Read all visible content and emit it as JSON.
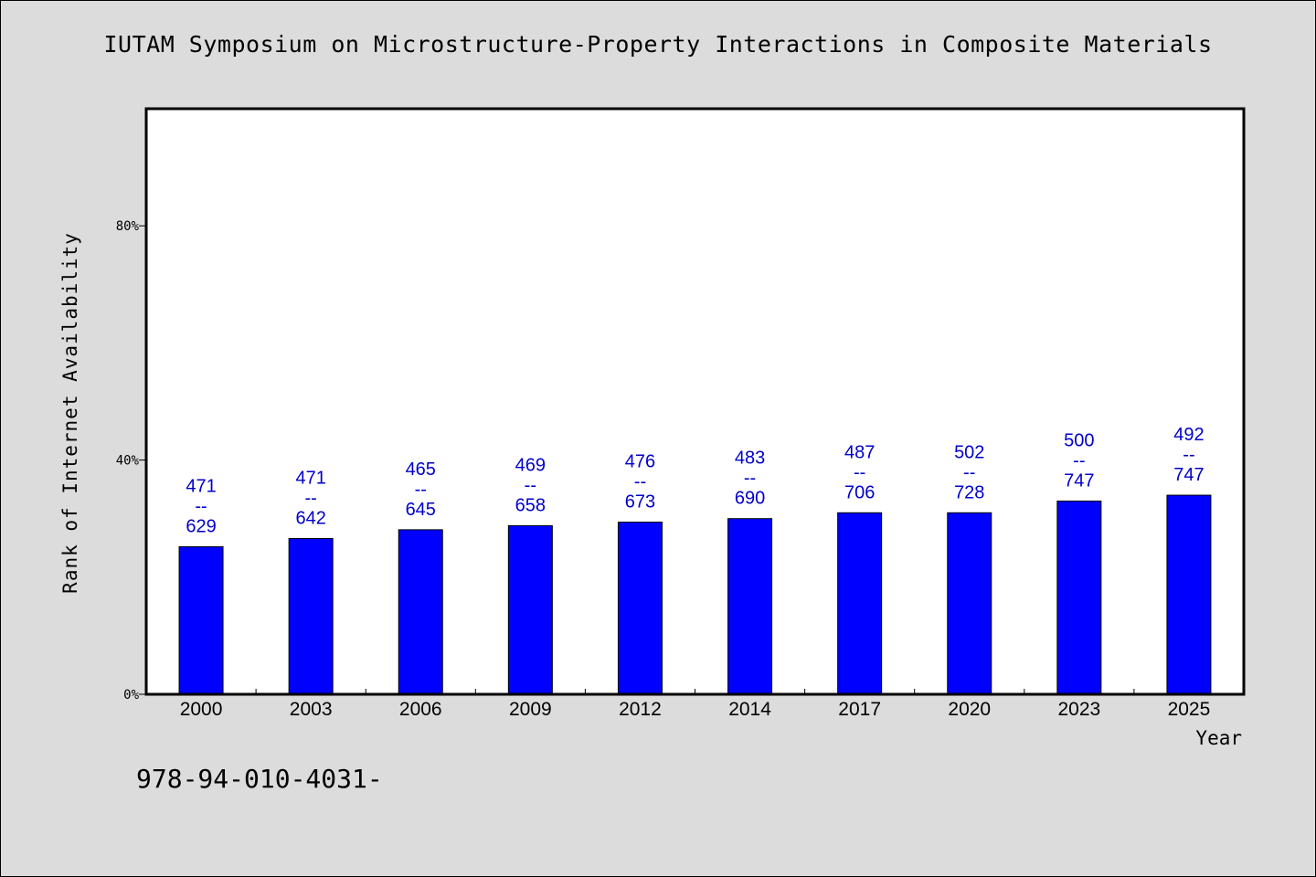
{
  "title": "IUTAM Symposium on Microstructure-Property Interactions in Composite Materials",
  "footnote": "978-94-010-4031-",
  "chart_data": {
    "type": "bar",
    "title": "IUTAM Symposium on Microstructure-Property Interactions in Composite Materials",
    "xlabel": "Year",
    "ylabel": "Rank of Internet Availability",
    "categories": [
      "2000",
      "2003",
      "2006",
      "2009",
      "2012",
      "2014",
      "2017",
      "2020",
      "2023",
      "2025"
    ],
    "values": [
      25.2,
      26.6,
      28.1,
      28.8,
      29.4,
      30.0,
      31.0,
      31.0,
      33.0,
      34.0
    ],
    "data_labels": [
      [
        "471",
        "--",
        "629"
      ],
      [
        "471",
        "--",
        "642"
      ],
      [
        "465",
        "--",
        "645"
      ],
      [
        "469",
        "--",
        "658"
      ],
      [
        "476",
        "--",
        "673"
      ],
      [
        "483",
        "--",
        "690"
      ],
      [
        "487",
        "--",
        "706"
      ],
      [
        "502",
        "--",
        "728"
      ],
      [
        "500",
        "--",
        "747"
      ],
      [
        "492",
        "--",
        "747"
      ]
    ],
    "yticks": [
      0,
      40,
      80
    ],
    "ytick_labels": [
      "0%",
      "40%",
      "80%"
    ],
    "ylim": [
      0,
      100
    ],
    "grid": false,
    "legend": "none",
    "colors": {
      "bar": "#0000ff",
      "label": "#0000cc",
      "plot_bg": "#ffffff",
      "page_bg": "#dcdcdc"
    }
  }
}
